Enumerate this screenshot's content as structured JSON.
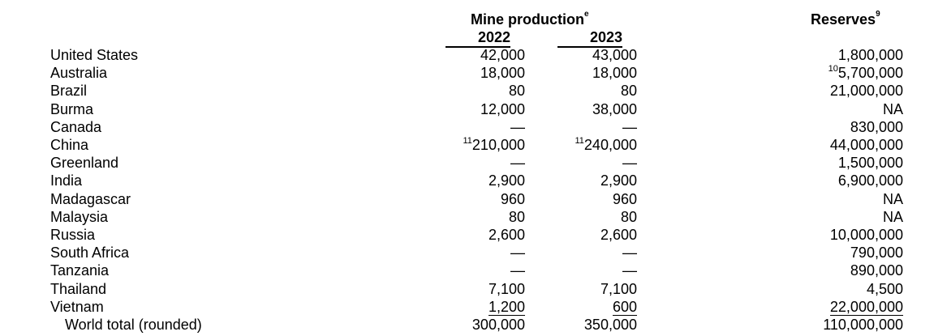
{
  "header": {
    "mine_production": "Mine production",
    "mine_production_note": "e",
    "reserves": "Reserves",
    "reserves_note": "9",
    "year1": "2022",
    "year2": "2023"
  },
  "rows": [
    {
      "country": "United States",
      "y2022": "42,000",
      "y2023": "43,000",
      "reserves": "1,800,000"
    },
    {
      "country": "Australia",
      "y2022": "18,000",
      "y2023": "18,000",
      "reserves": "5,700,000",
      "reserves_note": "10"
    },
    {
      "country": "Brazil",
      "y2022": "80",
      "y2023": "80",
      "reserves": "21,000,000"
    },
    {
      "country": "Burma",
      "y2022": "12,000",
      "y2023": "38,000",
      "reserves": "NA"
    },
    {
      "country": "Canada",
      "y2022": "—",
      "y2023": "—",
      "reserves": "830,000"
    },
    {
      "country": "China",
      "y2022": "210,000",
      "y2022_note": "11",
      "y2023": "240,000",
      "y2023_note": "11",
      "reserves": "44,000,000"
    },
    {
      "country": "Greenland",
      "y2022": "—",
      "y2023": "—",
      "reserves": "1,500,000"
    },
    {
      "country": "India",
      "y2022": "2,900",
      "y2023": "2,900",
      "reserves": "6,900,000"
    },
    {
      "country": "Madagascar",
      "y2022": "960",
      "y2023": "960",
      "reserves": "NA"
    },
    {
      "country": "Malaysia",
      "y2022": "80",
      "y2023": "80",
      "reserves": "NA"
    },
    {
      "country": "Russia",
      "y2022": "2,600",
      "y2023": "2,600",
      "reserves": "10,000,000"
    },
    {
      "country": "South Africa",
      "y2022": "—",
      "y2023": "—",
      "reserves": "790,000"
    },
    {
      "country": "Tanzania",
      "y2022": "—",
      "y2023": "—",
      "reserves": "890,000"
    },
    {
      "country": "Thailand",
      "y2022": "7,100",
      "y2023": "7,100",
      "reserves": "4,500"
    },
    {
      "country": "Vietnam",
      "y2022": "1,200",
      "y2023": "600",
      "reserves": "22,000,000"
    }
  ],
  "total": {
    "country": "World total (rounded)",
    "y2022": "300,000",
    "y2023": "350,000",
    "reserves": "110,000,000"
  }
}
